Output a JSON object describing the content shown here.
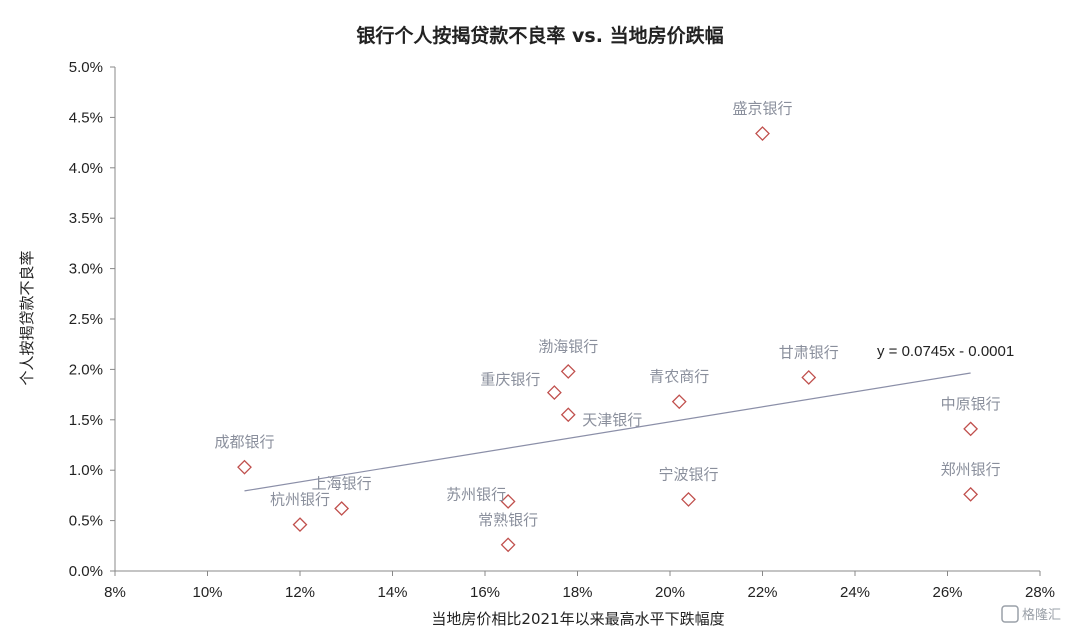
{
  "chart_data": {
    "type": "scatter",
    "title": "银行个人按揭贷款不良率 vs. 当地房价跌幅",
    "xlabel": "当地房价相比2021年以来最高水平下跌幅度",
    "ylabel": "个人按揭贷款不良率",
    "xlim": [
      8,
      28
    ],
    "ylim": [
      0,
      5
    ],
    "x_ticks": [
      "8%",
      "10%",
      "12%",
      "14%",
      "16%",
      "18%",
      "20%",
      "22%",
      "24%",
      "26%",
      "28%"
    ],
    "y_ticks": [
      "0.0%",
      "0.5%",
      "1.0%",
      "1.5%",
      "2.0%",
      "2.5%",
      "3.0%",
      "3.5%",
      "4.0%",
      "4.5%",
      "5.0%"
    ],
    "points": [
      {
        "label": "成都银行",
        "x": 10.8,
        "y": 1.03
      },
      {
        "label": "杭州银行",
        "x": 12.0,
        "y": 0.46
      },
      {
        "label": "上海银行",
        "x": 12.9,
        "y": 0.62
      },
      {
        "label": "苏州银行",
        "x": 16.5,
        "y": 0.69
      },
      {
        "label": "常熟银行",
        "x": 16.5,
        "y": 0.26
      },
      {
        "label": "重庆银行",
        "x": 17.5,
        "y": 1.77
      },
      {
        "label": "渤海银行",
        "x": 17.8,
        "y": 1.98
      },
      {
        "label": "天津银行",
        "x": 17.8,
        "y": 1.55
      },
      {
        "label": "青农商行",
        "x": 20.2,
        "y": 1.68
      },
      {
        "label": "宁波银行",
        "x": 20.4,
        "y": 0.71
      },
      {
        "label": "盛京银行",
        "x": 22.0,
        "y": 4.34
      },
      {
        "label": "甘肃银行",
        "x": 23.0,
        "y": 1.92
      },
      {
        "label": "中原银行",
        "x": 26.5,
        "y": 1.41
      },
      {
        "label": "郑州银行",
        "x": 26.5,
        "y": 0.76
      }
    ],
    "trendline": {
      "equation": "y = 0.0745x - 0.0001",
      "x_range": [
        10.8,
        26.5
      ],
      "slope": 0.0745,
      "intercept": -0.0001
    },
    "legend": "none",
    "grid": false,
    "marker": "diamond-outline",
    "colors": {
      "marker": "#c0504d",
      "trendline": "#8b8fa8",
      "label": "#8a8f9c",
      "axis": "#888888"
    }
  },
  "watermark": {
    "text": "格隆汇"
  }
}
